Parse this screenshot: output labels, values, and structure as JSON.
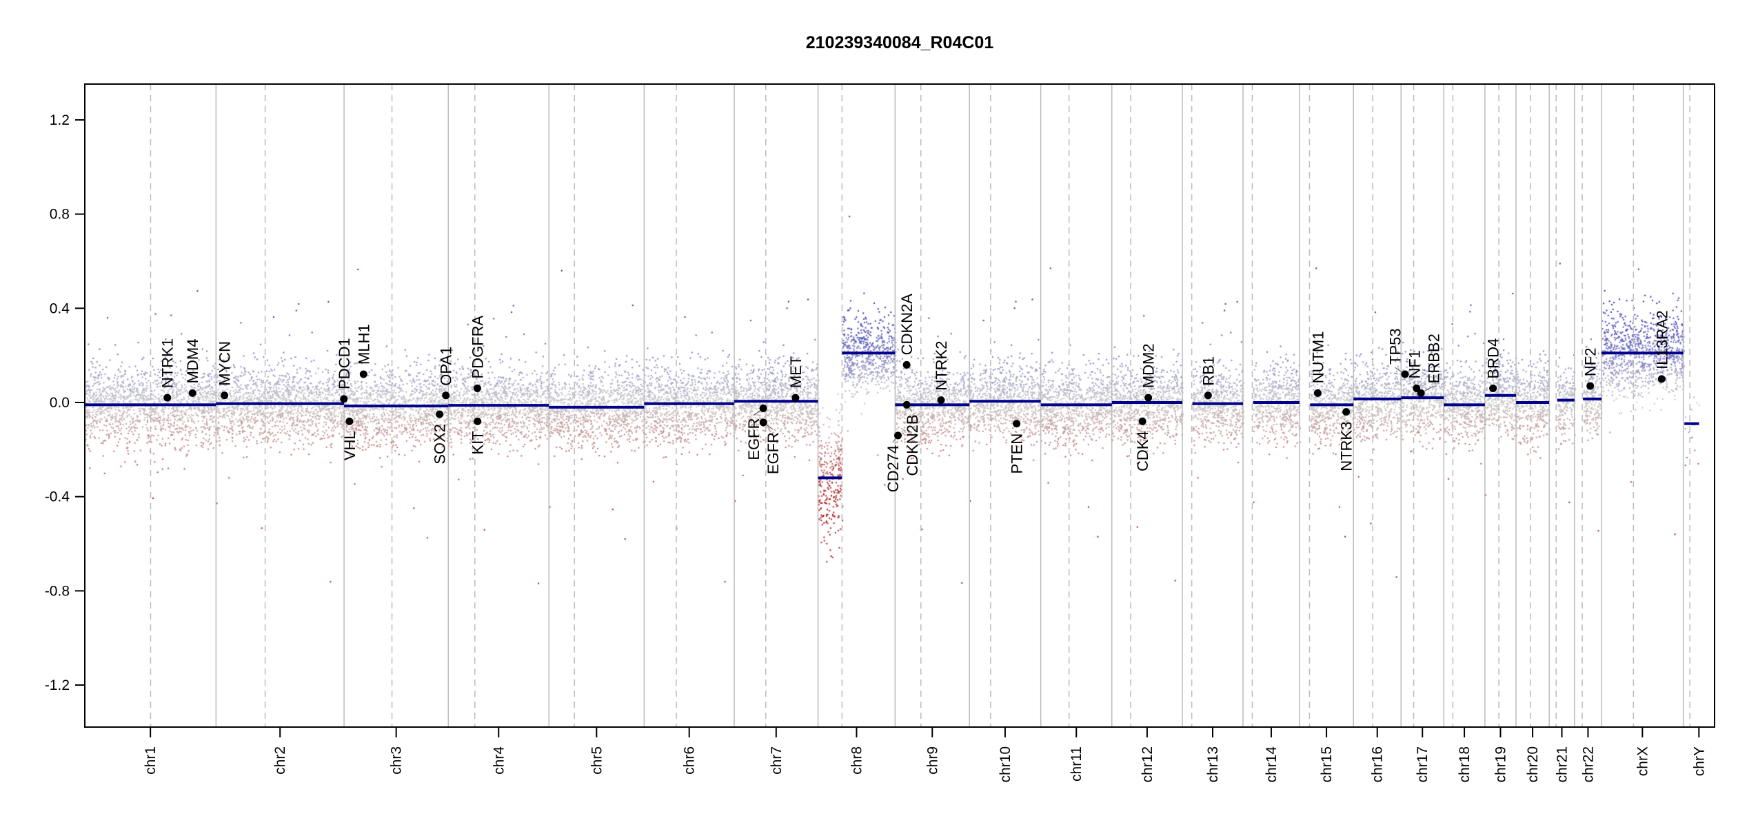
{
  "chart_data": {
    "type": "scatter",
    "title": "210239340084_R04C01",
    "xlabel": "",
    "ylabel": "",
    "ylim": [
      -1.38,
      1.35
    ],
    "yticks": [
      1.2,
      0.8,
      0.4,
      0.0,
      -0.4,
      -0.8,
      -1.2
    ],
    "ytick_labels": [
      "1.2",
      "0.8",
      "0.4",
      "0.0",
      "-0.4",
      "-0.8",
      "-1.2"
    ],
    "grid": false,
    "chromosomes": [
      {
        "name": "chr1",
        "length_mb": 249.25,
        "centromere_mb": 125.0
      },
      {
        "name": "chr2",
        "length_mb": 243.2,
        "centromere_mb": 93.3
      },
      {
        "name": "chr3",
        "length_mb": 198.0,
        "centromere_mb": 91.0
      },
      {
        "name": "chr4",
        "length_mb": 191.15,
        "centromere_mb": 50.4
      },
      {
        "name": "chr5",
        "length_mb": 180.9,
        "centromere_mb": 48.4
      },
      {
        "name": "chr6",
        "length_mb": 171.1,
        "centromere_mb": 61.0
      },
      {
        "name": "chr7",
        "length_mb": 159.1,
        "centromere_mb": 59.9
      },
      {
        "name": "chr8",
        "length_mb": 146.4,
        "centromere_mb": 45.6
      },
      {
        "name": "chr9",
        "length_mb": 141.2,
        "centromere_mb": 49.0
      },
      {
        "name": "chr10",
        "length_mb": 135.5,
        "centromere_mb": 40.2
      },
      {
        "name": "chr11",
        "length_mb": 135.0,
        "centromere_mb": 53.7
      },
      {
        "name": "chr12",
        "length_mb": 133.9,
        "centromere_mb": 35.8
      },
      {
        "name": "chr13",
        "length_mb": 115.2,
        "centromere_mb": 17.9
      },
      {
        "name": "chr14",
        "length_mb": 107.3,
        "centromere_mb": 17.6
      },
      {
        "name": "chr15",
        "length_mb": 102.5,
        "centromere_mb": 19.0
      },
      {
        "name": "chr16",
        "length_mb": 90.4,
        "centromere_mb": 36.6
      },
      {
        "name": "chr17",
        "length_mb": 81.2,
        "centromere_mb": 24.0
      },
      {
        "name": "chr18",
        "length_mb": 78.1,
        "centromere_mb": 17.2
      },
      {
        "name": "chr19",
        "length_mb": 59.1,
        "centromere_mb": 26.5
      },
      {
        "name": "chr20",
        "length_mb": 63.0,
        "centromere_mb": 27.5
      },
      {
        "name": "chr21",
        "length_mb": 48.1,
        "centromere_mb": 13.2
      },
      {
        "name": "chr22",
        "length_mb": 51.3,
        "centromere_mb": 14.7
      },
      {
        "name": "chrX",
        "length_mb": 155.3,
        "centromere_mb": 60.6
      },
      {
        "name": "chrY",
        "length_mb": 59.4,
        "centromere_mb": 12.5
      }
    ],
    "segments": [
      {
        "chr": 0,
        "start": 0,
        "end": 249.25,
        "value": -0.01
      },
      {
        "chr": 1,
        "start": 0,
        "end": 243.2,
        "value": -0.005
      },
      {
        "chr": 2,
        "start": 0,
        "end": 198.0,
        "value": -0.015
      },
      {
        "chr": 3,
        "start": 0,
        "end": 191.15,
        "value": -0.012
      },
      {
        "chr": 4,
        "start": 0,
        "end": 180.9,
        "value": -0.02
      },
      {
        "chr": 5,
        "start": 0,
        "end": 171.1,
        "value": -0.005
      },
      {
        "chr": 6,
        "start": 0,
        "end": 159.1,
        "value": 0.005
      },
      {
        "chr": 7,
        "start": 0,
        "end": 45.6,
        "value": -0.32
      },
      {
        "chr": 7,
        "start": 45.6,
        "end": 146.4,
        "value": 0.21
      },
      {
        "chr": 8,
        "start": 0,
        "end": 141.2,
        "value": -0.01
      },
      {
        "chr": 9,
        "start": 0,
        "end": 135.5,
        "value": 0.005
      },
      {
        "chr": 10,
        "start": 0,
        "end": 135.0,
        "value": -0.01
      },
      {
        "chr": 11,
        "start": 0,
        "end": 133.9,
        "value": 0.0
      },
      {
        "chr": 12,
        "start": 19.0,
        "end": 115.2,
        "value": -0.005
      },
      {
        "chr": 13,
        "start": 19.0,
        "end": 107.3,
        "value": 0.0
      },
      {
        "chr": 14,
        "start": 20.0,
        "end": 102.5,
        "value": -0.01
      },
      {
        "chr": 15,
        "start": 0,
        "end": 90.4,
        "value": 0.015
      },
      {
        "chr": 16,
        "start": 0,
        "end": 81.2,
        "value": 0.02
      },
      {
        "chr": 17,
        "start": 0,
        "end": 78.1,
        "value": -0.01
      },
      {
        "chr": 18,
        "start": 0,
        "end": 59.1,
        "value": 0.03
      },
      {
        "chr": 19,
        "start": 0,
        "end": 63.0,
        "value": 0.0
      },
      {
        "chr": 20,
        "start": 15.0,
        "end": 48.1,
        "value": 0.01
      },
      {
        "chr": 21,
        "start": 16.0,
        "end": 51.3,
        "value": 0.015
      },
      {
        "chr": 22,
        "start": 0,
        "end": 155.3,
        "value": 0.21
      },
      {
        "chr": 23,
        "start": 2.0,
        "end": 30.0,
        "value": -0.09
      }
    ],
    "genes": [
      {
        "name": "NTRK1",
        "chr": 0,
        "pos": 156.8,
        "value": 0.02,
        "side": "up"
      },
      {
        "name": "MDM4",
        "chr": 0,
        "pos": 204.5,
        "value": 0.04,
        "side": "up"
      },
      {
        "name": "MYCN",
        "chr": 1,
        "pos": 16.0,
        "value": 0.03,
        "side": "up"
      },
      {
        "name": "PDCD1",
        "chr": 1,
        "pos": 242.8,
        "value": 0.015,
        "side": "up"
      },
      {
        "name": "VHL",
        "chr": 2,
        "pos": 10.2,
        "value": -0.08,
        "side": "down"
      },
      {
        "name": "MLH1",
        "chr": 2,
        "pos": 37.0,
        "value": 0.12,
        "side": "up"
      },
      {
        "name": "SOX2",
        "chr": 2,
        "pos": 181.4,
        "value": -0.05,
        "side": "down"
      },
      {
        "name": "OPA1",
        "chr": 2,
        "pos": 193.3,
        "value": 0.03,
        "side": "up"
      },
      {
        "name": "PDGFRA",
        "chr": 3,
        "pos": 55.1,
        "value": 0.06,
        "side": "up"
      },
      {
        "name": "KIT",
        "chr": 3,
        "pos": 55.5,
        "value": -0.08,
        "side": "down"
      },
      {
        "name": "EGFR",
        "chr": 6,
        "pos": 55.1,
        "value": -0.025,
        "side": "down"
      },
      {
        "name": "EGFR",
        "chr": 6,
        "pos": 55.3,
        "value": -0.085,
        "side": "down"
      },
      {
        "name": "MET",
        "chr": 6,
        "pos": 116.3,
        "value": 0.02,
        "side": "up"
      },
      {
        "name": "CD274",
        "chr": 8,
        "pos": 5.45,
        "value": -0.14,
        "side": "down"
      },
      {
        "name": "CDKN2A",
        "chr": 8,
        "pos": 21.97,
        "value": 0.16,
        "side": "up"
      },
      {
        "name": "CDKN2B",
        "chr": 8,
        "pos": 22.0,
        "value": -0.01,
        "side": "down"
      },
      {
        "name": "NTRK2",
        "chr": 8,
        "pos": 87.3,
        "value": 0.01,
        "side": "up"
      },
      {
        "name": "PTEN",
        "chr": 9,
        "pos": 89.6,
        "value": -0.09,
        "side": "down"
      },
      {
        "name": "CDK4",
        "chr": 11,
        "pos": 58.1,
        "value": -0.08,
        "side": "down"
      },
      {
        "name": "MDM2",
        "chr": 11,
        "pos": 69.2,
        "value": 0.02,
        "side": "up"
      },
      {
        "name": "RB1",
        "chr": 12,
        "pos": 48.9,
        "value": 0.03,
        "side": "up"
      },
      {
        "name": "NUTM1",
        "chr": 14,
        "pos": 34.6,
        "value": 0.04,
        "side": "up"
      },
      {
        "name": "NTRK3",
        "chr": 14,
        "pos": 88.6,
        "value": -0.04,
        "side": "down"
      },
      {
        "name": "TP53",
        "chr": 16,
        "pos": 7.5,
        "value": 0.12,
        "side": "up"
      },
      {
        "name": "NF1",
        "chr": 16,
        "pos": 29.5,
        "value": 0.06,
        "side": "up"
      },
      {
        "name": "ERBB2",
        "chr": 16,
        "pos": 37.8,
        "value": 0.04,
        "side": "up"
      },
      {
        "name": "BRD4",
        "chr": 18,
        "pos": 15.4,
        "value": 0.06,
        "side": "up"
      },
      {
        "name": "NF2",
        "chr": 21,
        "pos": 29.9,
        "value": 0.07,
        "side": "up"
      },
      {
        "name": "IL13RA2",
        "chr": 22,
        "pos": 114.3,
        "value": 0.1,
        "side": "up"
      }
    ],
    "colors": {
      "segment": "#00008b",
      "gain": "#2a2ab8",
      "loss": "#b01515",
      "neutral": "#c8c8c8"
    }
  }
}
